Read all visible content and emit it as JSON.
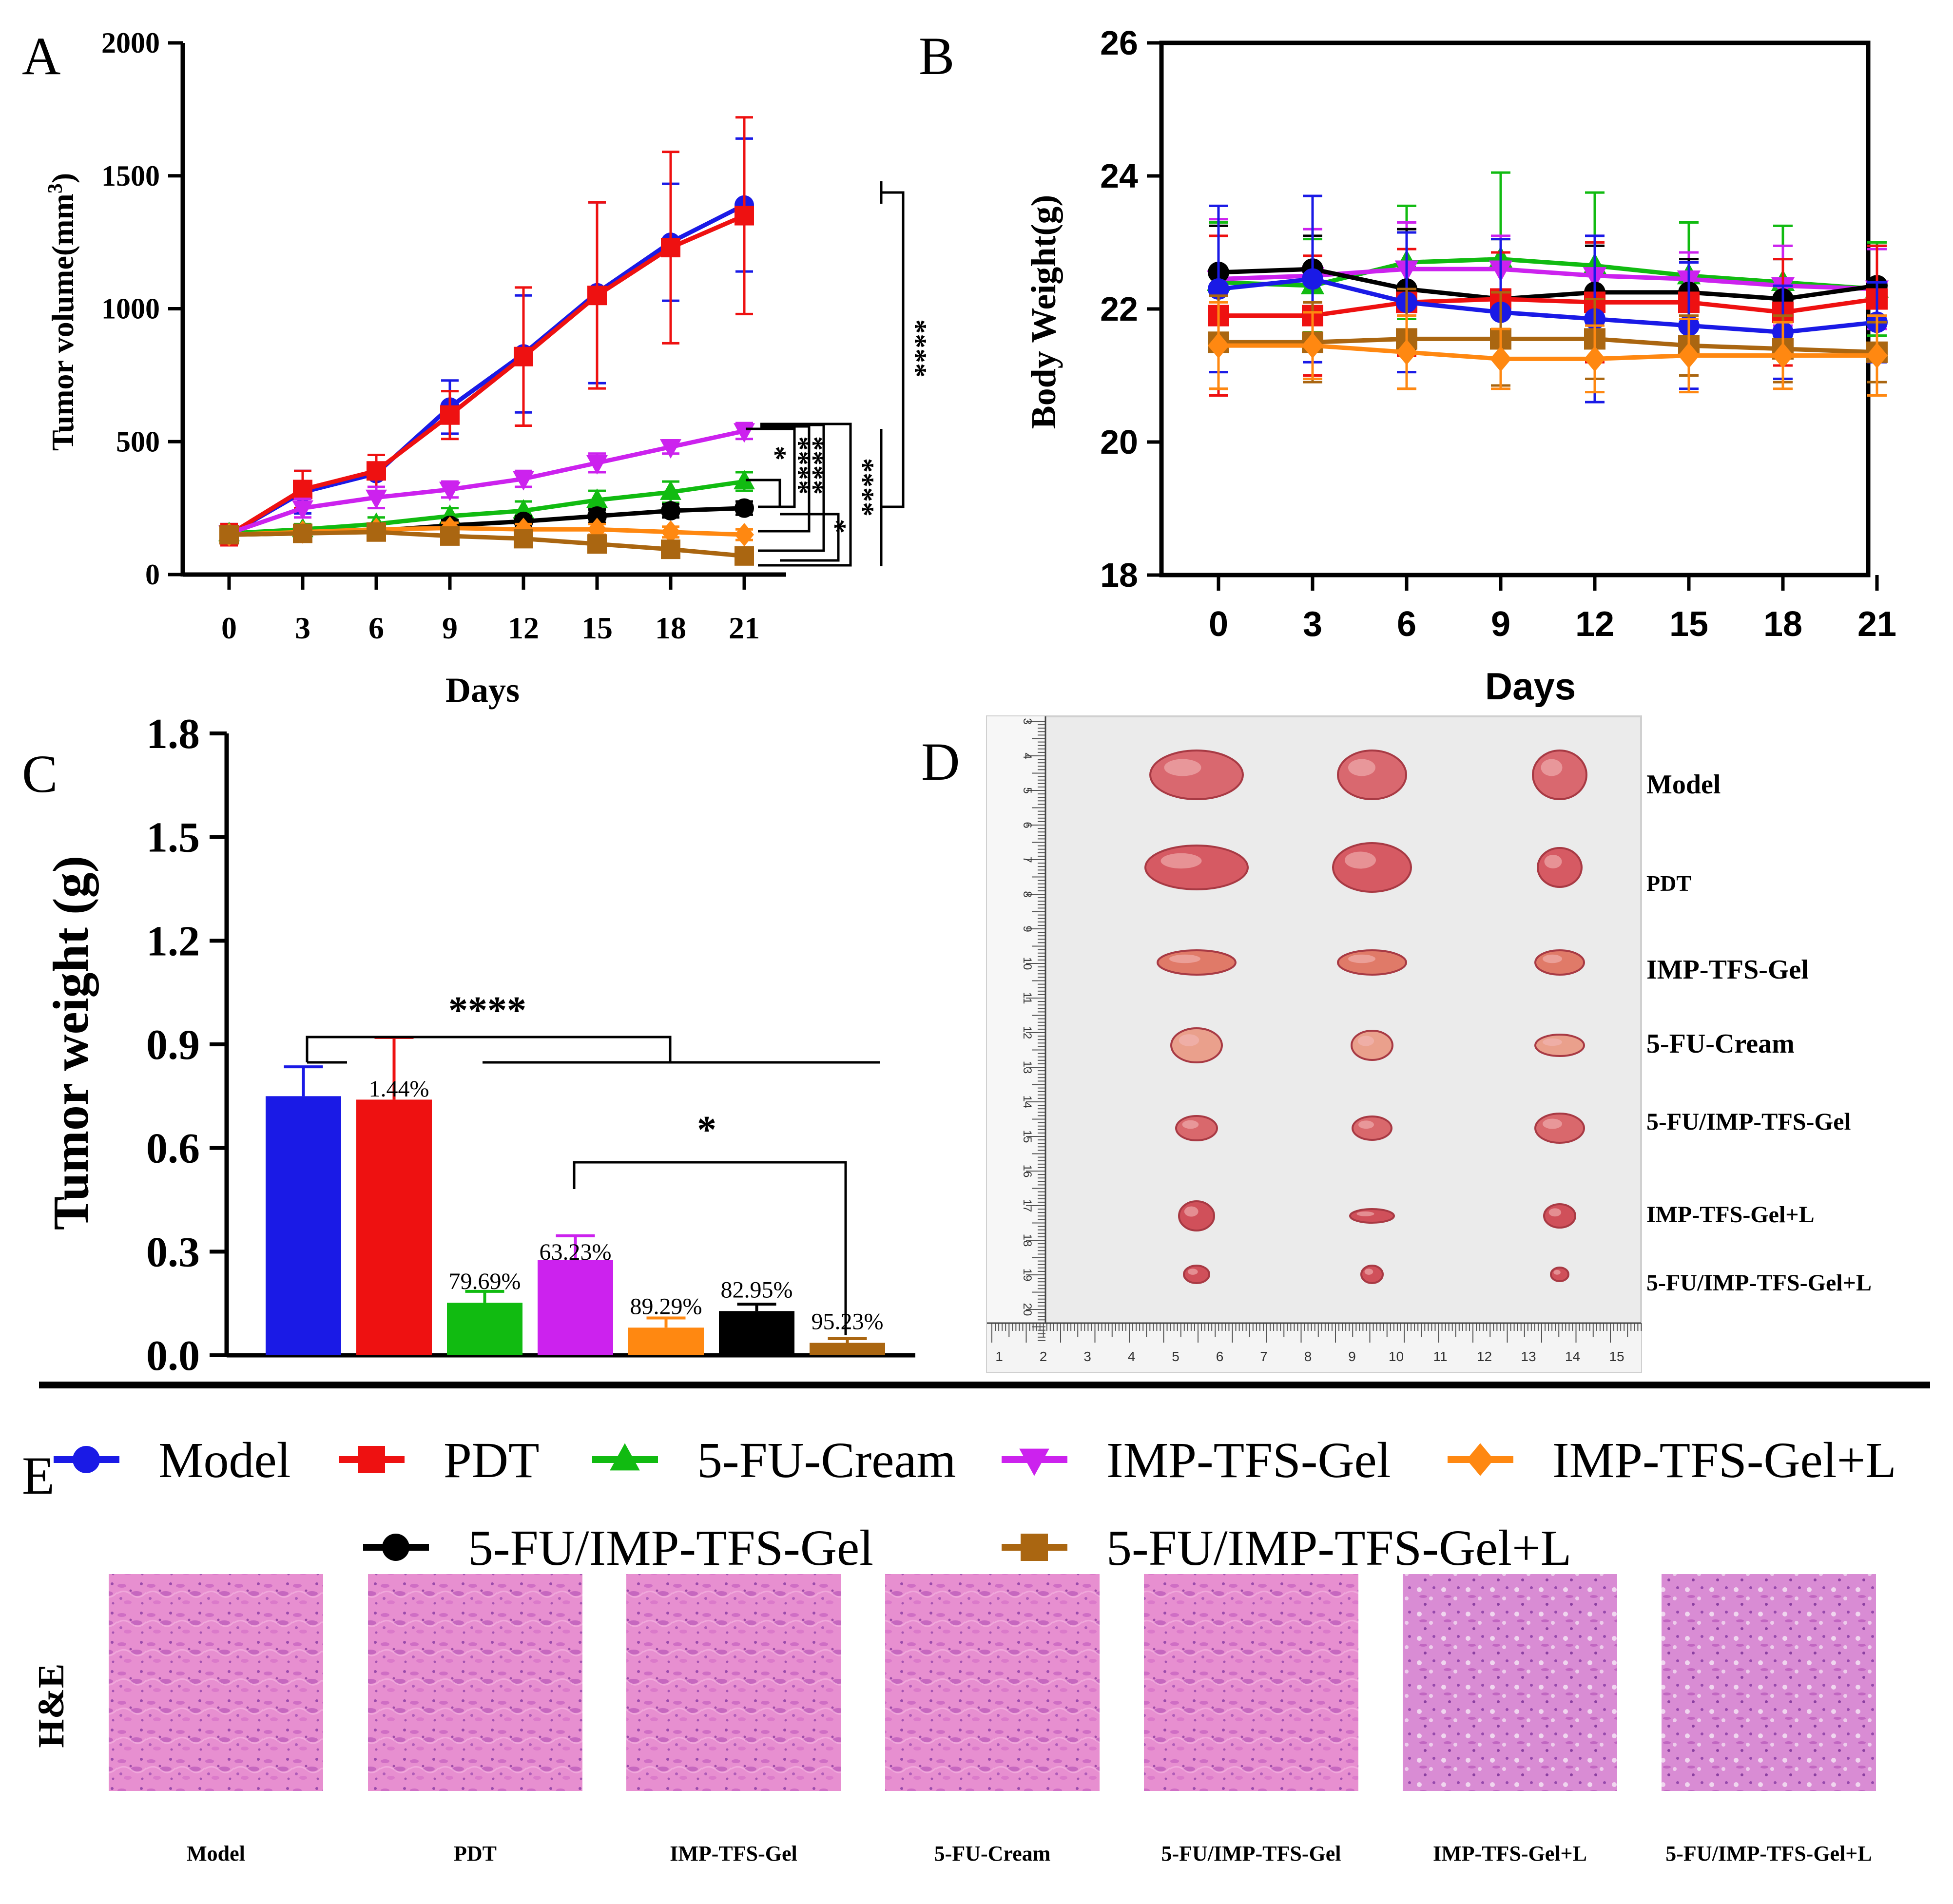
{
  "panel_labels": {
    "a": "A",
    "b": "B",
    "c": "C",
    "d": "D",
    "e": "E"
  },
  "colors": {
    "Model": "#1a1ae6",
    "PDT": "#ee1111",
    "5-FU-Cream": "#11bb11",
    "IMP-TFS-Gel": "#cc22ee",
    "IMP-TFS-Gel+L": "#ff8811",
    "5-FU/IMP-TFS-Gel": "#000000",
    "5-FU/IMP-TFS-Gel+L": "#aa6611"
  },
  "markers": {
    "Model": "circle",
    "PDT": "square",
    "5-FU-Cream": "triangle-up",
    "IMP-TFS-Gel": "triangle-down",
    "IMP-TFS-Gel+L": "diamond",
    "5-FU/IMP-TFS-Gel": "circle",
    "5-FU/IMP-TFS-Gel+L": "square"
  },
  "chart_data": [
    {
      "id": "A",
      "type": "line",
      "xlabel": "Days",
      "ylabel": "Tumor volume(mm",
      "ylabel_sup": "3",
      "ylabel_close": ")",
      "x": [
        0,
        3,
        6,
        9,
        12,
        15,
        18,
        21
      ],
      "x_ticks": [
        "0",
        "3",
        "6",
        "9",
        "12",
        "15",
        "18",
        "21"
      ],
      "ylim": [
        0,
        2000
      ],
      "y_ticks": [
        "0",
        "500",
        "1000",
        "1500",
        "2000"
      ],
      "series": [
        {
          "name": "Model",
          "values": [
            150,
            310,
            380,
            630,
            830,
            1060,
            1250,
            1390
          ],
          "err": [
            40,
            80,
            70,
            100,
            220,
            340,
            220,
            250
          ]
        },
        {
          "name": "PDT",
          "values": [
            150,
            320,
            390,
            600,
            820,
            1050,
            1230,
            1350
          ],
          "err": [
            40,
            70,
            60,
            90,
            260,
            350,
            360,
            370
          ]
        },
        {
          "name": "5-FU-Cream",
          "values": [
            155,
            170,
            190,
            220,
            240,
            280,
            310,
            350
          ],
          "err": [
            20,
            20,
            25,
            30,
            35,
            35,
            40,
            35
          ]
        },
        {
          "name": "IMP-TFS-Gel",
          "values": [
            155,
            250,
            290,
            320,
            360,
            420,
            480,
            540
          ],
          "err": [
            20,
            35,
            40,
            30,
            30,
            35,
            25,
            30
          ]
        },
        {
          "name": "5-FU/IMP-TFS-Gel",
          "values": [
            150,
            155,
            165,
            185,
            200,
            220,
            240,
            250
          ],
          "err": [
            15,
            15,
            20,
            20,
            20,
            25,
            25,
            25
          ]
        },
        {
          "name": "IMP-TFS-Gel+L",
          "values": [
            150,
            160,
            170,
            175,
            170,
            170,
            160,
            150
          ],
          "err": [
            15,
            15,
            15,
            20,
            20,
            20,
            20,
            20
          ]
        },
        {
          "name": "5-FU/IMP-TFS-Gel+L",
          "values": [
            150,
            155,
            160,
            145,
            135,
            115,
            95,
            70
          ],
          "err": [
            15,
            15,
            15,
            15,
            20,
            20,
            20,
            20
          ]
        }
      ],
      "significance": [
        "****",
        "*",
        "****",
        "****",
        "*",
        "****"
      ]
    },
    {
      "id": "B",
      "type": "line",
      "xlabel": "Days",
      "ylabel": "Body Weight(g)",
      "x": [
        0,
        3,
        6,
        9,
        12,
        15,
        18,
        21
      ],
      "x_ticks": [
        "0",
        "3",
        "6",
        "9",
        "12",
        "15",
        "18",
        "21"
      ],
      "ylim": [
        18,
        26
      ],
      "y_ticks": [
        "18",
        "20",
        "22",
        "24",
        "26"
      ],
      "series": [
        {
          "name": "5-FU-Cream",
          "values": [
            22.4,
            22.35,
            22.7,
            22.75,
            22.65,
            22.5,
            22.4,
            22.3
          ],
          "err": [
            0.9,
            0.7,
            0.85,
            1.3,
            1.1,
            0.8,
            0.85,
            0.7
          ]
        },
        {
          "name": "IMP-TFS-Gel",
          "values": [
            22.45,
            22.5,
            22.6,
            22.6,
            22.5,
            22.45,
            22.35,
            22.3
          ],
          "err": [
            0.9,
            0.7,
            0.7,
            0.5,
            0.6,
            0.4,
            0.6,
            0.6
          ]
        },
        {
          "name": "5-FU/IMP-TFS-Gel",
          "values": [
            22.55,
            22.6,
            22.3,
            22.15,
            22.25,
            22.25,
            22.15,
            22.35
          ],
          "err": [
            0.7,
            0.5,
            0.9,
            0.9,
            0.7,
            0.5,
            0.6,
            0.6
          ]
        },
        {
          "name": "PDT",
          "values": [
            21.9,
            21.9,
            22.1,
            22.15,
            22.1,
            22.1,
            21.95,
            22.15
          ],
          "err": [
            1.2,
            0.9,
            0.8,
            0.7,
            0.9,
            0.6,
            0.8,
            0.8
          ]
        },
        {
          "name": "Model",
          "values": [
            22.3,
            22.45,
            22.1,
            21.95,
            21.85,
            21.75,
            21.65,
            21.8
          ],
          "err": [
            1.25,
            1.25,
            1.05,
            1.1,
            1.25,
            0.95,
            0.7,
            0.6
          ]
        },
        {
          "name": "5-FU/IMP-TFS-Gel+L",
          "values": [
            21.5,
            21.5,
            21.55,
            21.55,
            21.55,
            21.45,
            21.4,
            21.35
          ],
          "err": [
            0.7,
            0.6,
            0.75,
            0.7,
            0.6,
            0.45,
            0.5,
            0.45
          ]
        },
        {
          "name": "IMP-TFS-Gel+L",
          "values": [
            21.45,
            21.45,
            21.35,
            21.25,
            21.25,
            21.3,
            21.3,
            21.3
          ],
          "err": [
            0.65,
            0.5,
            0.55,
            0.45,
            0.5,
            0.55,
            0.5,
            0.6
          ]
        }
      ]
    },
    {
      "id": "C",
      "type": "bar",
      "ylabel": "Tumor weight (g)",
      "ylim": [
        0,
        1.8
      ],
      "y_ticks": [
        "0.0",
        "0.3",
        "0.6",
        "0.9",
        "1.2",
        "1.5",
        "1.8"
      ],
      "categories": [
        "Model",
        "PDT",
        "5-FU-Cream",
        "IMP-TFS-Gel",
        "IMP-TFS-Gel+L",
        "5-FU/IMP-TFS-Gel",
        "5-FU/IMP-TFS-Gel+L"
      ],
      "values": [
        0.75,
        0.74,
        0.152,
        0.276,
        0.08,
        0.128,
        0.036
      ],
      "err": [
        0.085,
        0.18,
        0.033,
        0.07,
        0.028,
        0.02,
        0.012
      ],
      "labels": [
        "",
        "1.44%",
        "79.69%",
        "63.23%",
        "89.29%",
        "82.95%",
        "95.23%"
      ],
      "significance": [
        "****",
        "*"
      ]
    }
  ],
  "panel_d": {
    "rows": [
      "Model",
      "PDT",
      "IMP-TFS-Gel",
      "5-FU-Cream",
      "5-FU/IMP-TFS-Gel",
      "IMP-TFS-Gel+L",
      "5-FU/IMP-TFS-Gel+L"
    ],
    "ruler_bottom": [
      "1",
      "2",
      "3",
      "4",
      "5",
      "6",
      "7",
      "8",
      "9",
      "10",
      "11",
      "12",
      "13",
      "14",
      "15"
    ],
    "ruler_left": [
      "3",
      "4",
      "5",
      "6",
      "7",
      "8",
      "9",
      "10",
      "11",
      "12",
      "13",
      "14",
      "15",
      "16",
      "17",
      "18",
      "19",
      "20"
    ]
  },
  "legend": {
    "row1": [
      "Model",
      "PDT",
      "5-FU-Cream",
      "IMP-TFS-Gel",
      "IMP-TFS-Gel+L"
    ],
    "row2": [
      "5-FU/IMP-TFS-Gel",
      "5-FU/IMP-TFS-Gel+L"
    ]
  },
  "panel_e": {
    "row_label": "H&E",
    "captions": [
      "Model",
      "PDT",
      "IMP-TFS-Gel",
      "5-FU-Cream",
      "5-FU/IMP-TFS-Gel",
      "IMP-TFS-Gel+L",
      "5-FU/IMP-TFS-Gel+L"
    ]
  }
}
